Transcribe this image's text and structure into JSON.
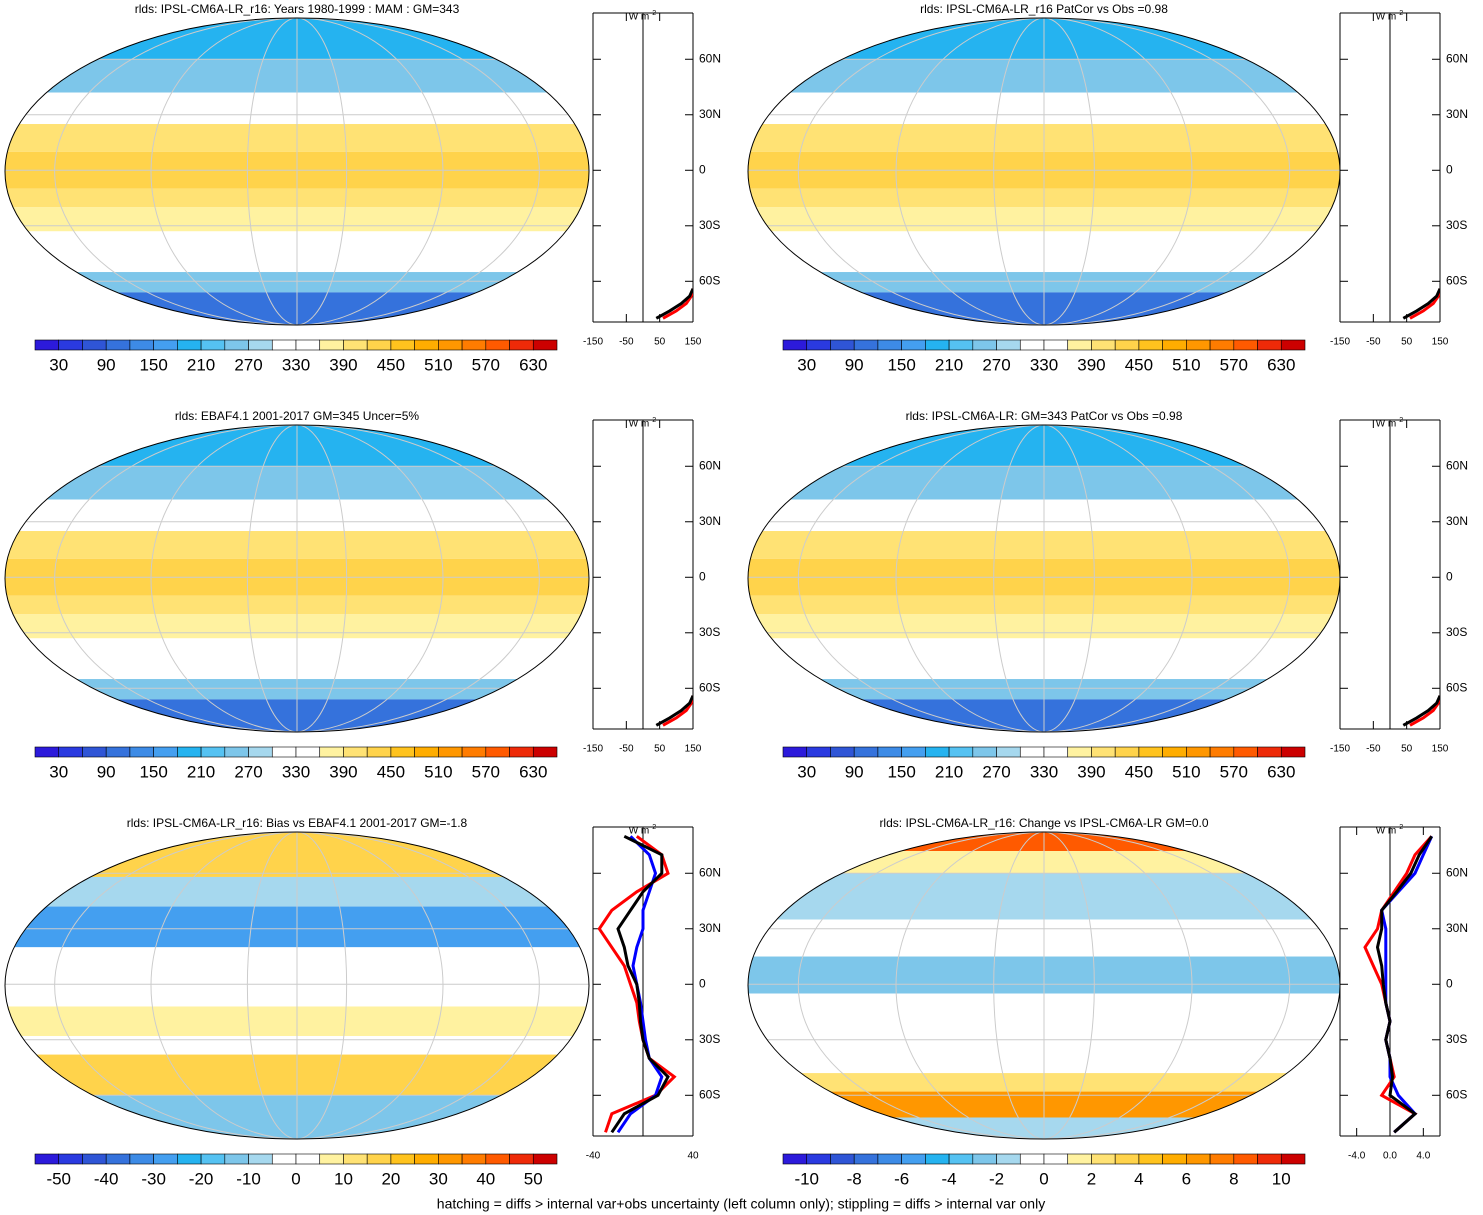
{
  "panels": [
    {
      "title": "rlds: IPSL-CM6A-LR_r16: Years 1980-1999 : MAM : GM=343",
      "kind": "clim",
      "colorbar": {
        "range": [
          0,
          660
        ],
        "ticks": [
          30,
          90,
          150,
          210,
          270,
          330,
          390,
          450,
          510,
          570,
          630
        ]
      },
      "profile": {
        "unit": "W m",
        "unit_exponent": "-2",
        "xlim": [
          -150,
          150
        ],
        "xticks": [
          -150,
          -50,
          50,
          150
        ],
        "lat": [
          -64,
          -68,
          -72,
          -76,
          -80
        ],
        "series": [
          {
            "color": "#ff0000",
            "values": [
              150,
              145,
              130,
              100,
              60
            ]
          },
          {
            "color": "#000000",
            "values": [
              150,
              140,
              115,
              80,
              40
            ]
          }
        ]
      }
    },
    {
      "title": "rlds: IPSL-CM6A-LR_r16 PatCor vs Obs =0.98",
      "kind": "clim",
      "colorbar": {
        "range": [
          0,
          660
        ],
        "ticks": [
          30,
          90,
          150,
          210,
          270,
          330,
          390,
          450,
          510,
          570,
          630
        ]
      },
      "profile": {
        "unit": "W m",
        "unit_exponent": "-2",
        "xlim": [
          -150,
          150
        ],
        "xticks": [
          -150,
          -50,
          50,
          150
        ],
        "lat": [
          -64,
          -68,
          -72,
          -76,
          -80
        ],
        "series": [
          {
            "color": "#ff0000",
            "values": [
              150,
              145,
              130,
              100,
              60
            ]
          },
          {
            "color": "#000000",
            "values": [
              150,
              140,
              115,
              80,
              40
            ]
          }
        ]
      }
    },
    {
      "title": "rlds: EBAF4.1 2001-2017 GM=345 Uncer=5%",
      "kind": "clim",
      "colorbar": {
        "range": [
          0,
          660
        ],
        "ticks": [
          30,
          90,
          150,
          210,
          270,
          330,
          390,
          450,
          510,
          570,
          630
        ]
      },
      "profile": {
        "unit": "W m",
        "unit_exponent": "-2",
        "xlim": [
          -150,
          150
        ],
        "xticks": [
          -150,
          -50,
          50,
          150
        ],
        "lat": [
          -64,
          -68,
          -72,
          -76,
          -80
        ],
        "series": [
          {
            "color": "#ff0000",
            "values": [
              150,
              145,
              130,
              100,
              60
            ]
          },
          {
            "color": "#000000",
            "values": [
              150,
              140,
              115,
              80,
              40
            ]
          }
        ]
      }
    },
    {
      "title": "rlds: IPSL-CM6A-LR: GM=343 PatCor vs Obs =0.98",
      "kind": "clim",
      "colorbar": {
        "range": [
          0,
          660
        ],
        "ticks": [
          30,
          90,
          150,
          210,
          270,
          330,
          390,
          450,
          510,
          570,
          630
        ]
      },
      "profile": {
        "unit": "W m",
        "unit_exponent": "-2",
        "xlim": [
          -150,
          150
        ],
        "xticks": [
          -150,
          -50,
          50,
          150
        ],
        "lat": [
          -64,
          -68,
          -72,
          -76,
          -80
        ],
        "series": [
          {
            "color": "#ff0000",
            "values": [
              150,
              145,
              130,
              100,
              60
            ]
          },
          {
            "color": "#000000",
            "values": [
              150,
              140,
              115,
              80,
              40
            ]
          }
        ]
      }
    },
    {
      "title": "rlds: IPSL-CM6A-LR_r16: Bias vs EBAF4.1 2001-2017 GM=-1.8",
      "kind": "bias",
      "colorbar": {
        "range": [
          -55,
          55
        ],
        "ticks": [
          -50,
          -40,
          -30,
          -20,
          -10,
          0,
          10,
          20,
          30,
          40,
          50
        ]
      },
      "profile": {
        "unit": "W m",
        "unit_exponent": "-2",
        "xlim": [
          -40,
          40
        ],
        "xticks": [
          -40,
          40
        ],
        "lat": [
          80,
          70,
          60,
          50,
          40,
          30,
          20,
          10,
          0,
          -10,
          -20,
          -30,
          -40,
          -50,
          -60,
          -70,
          -80
        ],
        "series": [
          {
            "color": "#ff0000",
            "values": [
              -5,
              15,
              20,
              -5,
              -25,
              -35,
              -25,
              -15,
              -10,
              -5,
              -3,
              0,
              5,
              25,
              10,
              -25,
              -30
            ]
          },
          {
            "color": "#0000ff",
            "values": [
              -10,
              5,
              10,
              5,
              0,
              0,
              -5,
              -8,
              -5,
              -2,
              0,
              2,
              5,
              15,
              10,
              -10,
              -20
            ]
          },
          {
            "color": "#000000",
            "values": [
              -15,
              15,
              15,
              0,
              -10,
              -20,
              -15,
              -12,
              -5,
              -3,
              -2,
              0,
              5,
              20,
              12,
              -15,
              -25
            ]
          }
        ]
      }
    },
    {
      "title": "rlds: IPSL-CM6A-LR_r16: Change vs IPSL-CM6A-LR GM=0.0",
      "kind": "change",
      "colorbar": {
        "range": [
          -11,
          11
        ],
        "ticks": [
          -10,
          -8,
          -6,
          -4,
          -2,
          0,
          2,
          4,
          6,
          8,
          10
        ]
      },
      "profile": {
        "unit": "W m",
        "unit_exponent": "-2",
        "xlim": [
          -6,
          6
        ],
        "xticks": [
          {
            "value": -4,
            "label": "-4.0"
          },
          {
            "value": 0,
            "label": "0.0"
          },
          {
            "value": 4,
            "label": "4.0"
          }
        ],
        "lat": [
          80,
          70,
          60,
          50,
          40,
          30,
          20,
          10,
          0,
          -10,
          -20,
          -30,
          -40,
          -50,
          -60,
          -70,
          -80
        ],
        "series": [
          {
            "color": "#ff0000",
            "values": [
              5,
              3,
              2,
              0.5,
              -1,
              -1.5,
              -3,
              -2,
              -1,
              -0.5,
              0,
              -0.5,
              0,
              0.5,
              -1,
              3,
              0.5
            ]
          },
          {
            "color": "#0000ff",
            "values": [
              5,
              4,
              3,
              1,
              -1,
              -0.5,
              -0.5,
              -0.5,
              -0.5,
              -0.5,
              0,
              -0.5,
              0,
              0,
              1,
              3,
              0.5
            ]
          },
          {
            "color": "#000000",
            "values": [
              5,
              3.5,
              2.5,
              0.8,
              -1,
              -1,
              -1.5,
              -1,
              -0.8,
              -0.5,
              0,
              -0.5,
              0,
              0.3,
              0,
              3,
              0.5
            ]
          }
        ]
      }
    }
  ],
  "colors": [
    "#2c1adb",
    "#2a3ae0",
    "#2f55d6",
    "#3572dc",
    "#3d8be6",
    "#449ff0",
    "#25b3f0",
    "#55c2f2",
    "#7dc6ea",
    "#a6d8ee",
    "#ffffff",
    "#ffffff",
    "#fff2a0",
    "#ffe274",
    "#ffd34b",
    "#ffc31e",
    "#ffad00",
    "#ff9700",
    "#ff7c00",
    "#ff5a00",
    "#ee2a08",
    "#cc0000"
  ],
  "lat_ticks": {
    "ylim": [
      -82,
      85
    ],
    "ticks": [
      {
        "value": 60,
        "label": "60N"
      },
      {
        "value": 30,
        "label": "30N"
      },
      0,
      {
        "value": -30,
        "label": "30S"
      },
      {
        "value": -60,
        "label": "60S"
      }
    ]
  },
  "footer": "hatching = diffs > internal var+obs uncertainty (left column only); stippling = diffs > internal var only"
}
